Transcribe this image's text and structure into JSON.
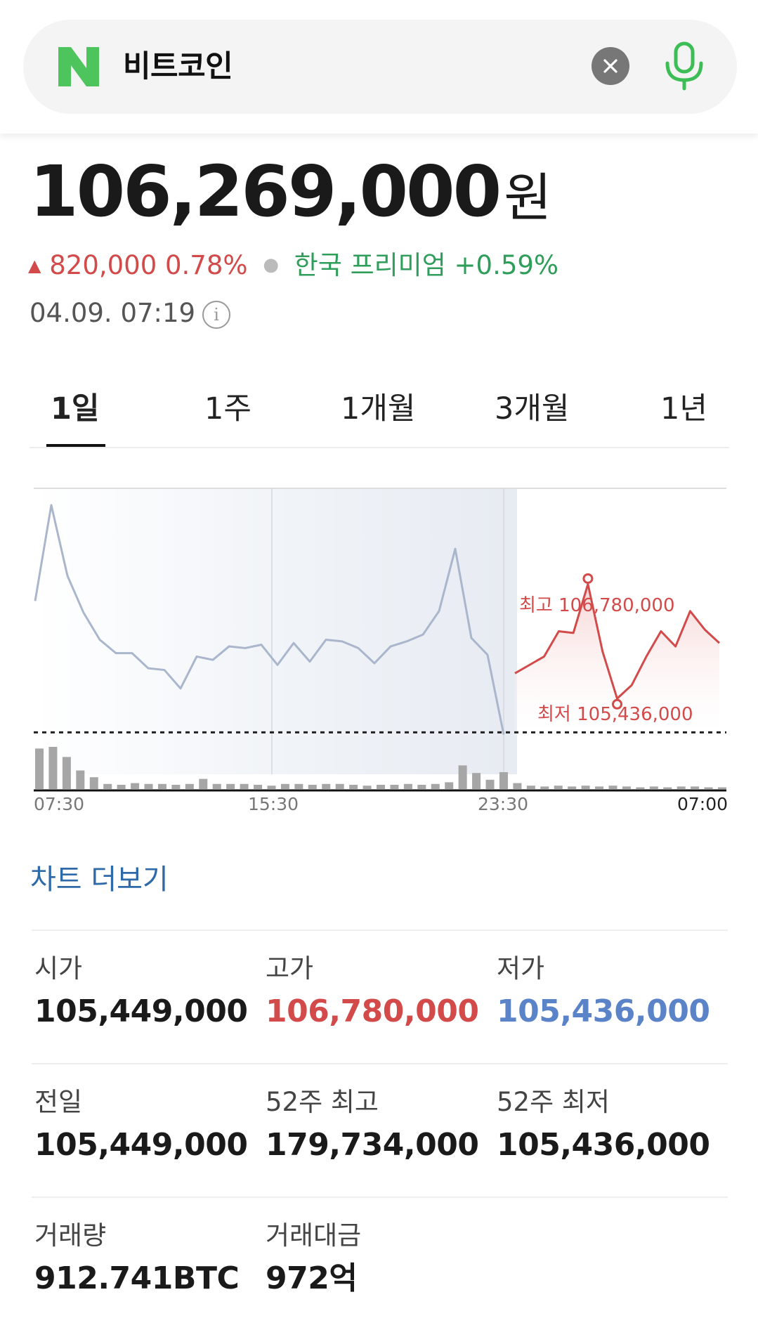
{
  "search": {
    "query": "비트코인",
    "logo_letter": "N"
  },
  "price": {
    "value": "106,269,000",
    "unit": "원",
    "arrow": "▲",
    "change": "820,000 0.78%",
    "premium": "한국 프리미엄 +0.59%",
    "timestamp": "04.09. 07:19",
    "info_glyph": "i"
  },
  "tabs": [
    {
      "label": "1일",
      "active": true
    },
    {
      "label": "1주",
      "active": false
    },
    {
      "label": "1개월",
      "active": false
    },
    {
      "label": "3개월",
      "active": false
    },
    {
      "label": "1년",
      "active": false
    }
  ],
  "chart_data": {
    "type": "line",
    "x_tick_labels": [
      "07:30",
      "15:30",
      "23:30",
      "07:00"
    ],
    "high_label": "최고 106,780,000",
    "low_label": "최저 105,436,000",
    "high": 106780000,
    "low": 105436000,
    "reference_line": 105449000,
    "past_series": [
      106230000,
      106800000,
      106380000,
      106160000,
      106000000,
      105920000,
      105920000,
      105830000,
      105820000,
      105710000,
      105900000,
      105880000,
      105960000,
      105950000,
      105970000,
      105850000,
      105980000,
      105870000,
      106000000,
      105990000,
      105950000,
      105860000,
      105960000,
      105990000,
      106030000,
      106170000,
      106540000,
      106010000,
      105910000,
      105436000
    ],
    "today_series": [
      105800000,
      105850000,
      105900000,
      106050000,
      106040000,
      106330000,
      105930000,
      105650000,
      105730000,
      105900000,
      106050000,
      105960000,
      106170000,
      106060000,
      105980000
    ],
    "volume": [
      48,
      50,
      38,
      22,
      14,
      6,
      5,
      7,
      6,
      6,
      5,
      6,
      12,
      6,
      6,
      6,
      5,
      4,
      6,
      6,
      5,
      6,
      6,
      5,
      4,
      5,
      5,
      6,
      5,
      6,
      8,
      28,
      19,
      11,
      20,
      7,
      4,
      3,
      4,
      3,
      4,
      3,
      4,
      3,
      2,
      3,
      2,
      3,
      3,
      2,
      2
    ]
  },
  "more_link": "차트 더보기",
  "stats": [
    [
      {
        "label": "시가",
        "value": "105,449,000",
        "color": ""
      },
      {
        "label": "고가",
        "value": "106,780,000",
        "color": "red"
      },
      {
        "label": "저가",
        "value": "105,436,000",
        "color": "blue"
      }
    ],
    [
      {
        "label": "전일",
        "value": "105,449,000",
        "color": ""
      },
      {
        "label": "52주 최고",
        "value": "179,734,000",
        "color": ""
      },
      {
        "label": "52주 최저",
        "value": "105,436,000",
        "color": ""
      }
    ],
    [
      {
        "label": "거래량",
        "value": "912.741BTC",
        "color": ""
      },
      {
        "label": "거래대금",
        "value": "972억",
        "color": ""
      }
    ]
  ],
  "colors": {
    "up": "#d34a4a",
    "down_blue": "#5a83c8",
    "premium_green": "#2f9e5b",
    "link_blue": "#2f6aa8",
    "naver_green": "#2db400"
  },
  "icons": {
    "clear": "close-icon",
    "mic": "microphone-icon",
    "info": "info-icon"
  }
}
